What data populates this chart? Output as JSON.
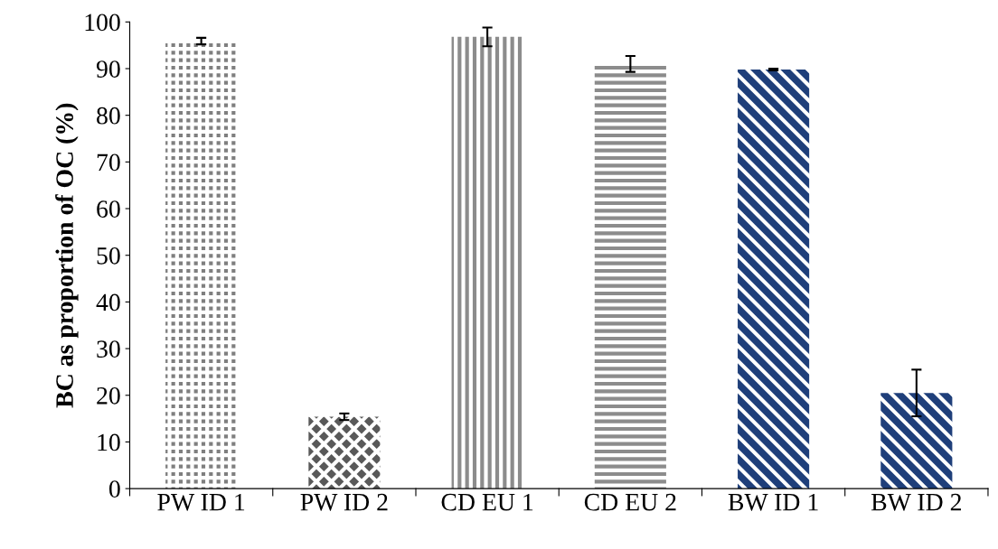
{
  "chart_data": {
    "type": "bar",
    "ylabel": "BC as proportion of OC (%)",
    "categories": [
      "PW ID 1",
      "PW ID 2",
      "CD EU 1",
      "CD EU 2",
      "BW ID 1",
      "BW ID 2"
    ],
    "values": [
      95.9,
      15.4,
      96.8,
      91,
      89.8,
      20.5
    ],
    "errors": [
      0.7,
      0.7,
      2,
      1.7,
      0.2,
      5
    ],
    "colors": [
      "#7f7f7f",
      "#595959",
      "#8c8c8c",
      "#8c8c8c",
      "#1f3f7a",
      "#1f3f7a"
    ],
    "ylim": [
      0,
      100
    ],
    "yticks": [
      0,
      10,
      20,
      30,
      40,
      50,
      60,
      70,
      80,
      90,
      100
    ],
    "grid": false,
    "legend": false
  }
}
